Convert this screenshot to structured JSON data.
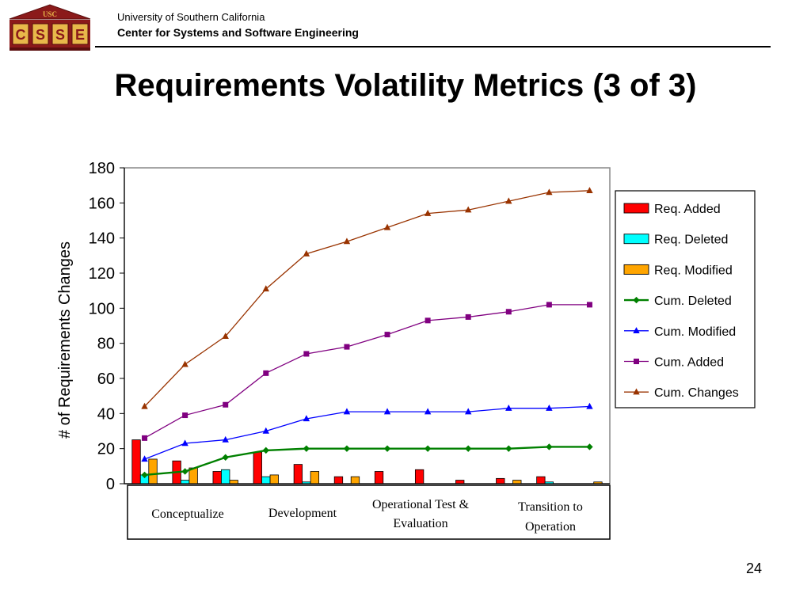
{
  "header": {
    "logo_text": "USC",
    "logo_letters": [
      "C",
      "S",
      "S",
      "E"
    ],
    "university": "University of Southern California",
    "center": "Center for Systems and Software Engineering"
  },
  "slide": {
    "title": "Requirements Volatility Metrics (3 of 3)",
    "number": "24"
  },
  "colors": {
    "req_added": "#ff0000",
    "req_deleted": "#00ffff",
    "req_modified": "#ffa500",
    "cum_deleted": "#008000",
    "cum_modified": "#0000ff",
    "cum_added": "#800080",
    "cum_changes": "#993300",
    "logo_brick": "#8b1a1a",
    "logo_gold": "#e8b84a"
  },
  "chart_data": {
    "type": "bar+line",
    "ylabel": "# of Requirements Changes",
    "ylim": [
      0,
      180
    ],
    "yticks": [
      "0",
      "20",
      "40",
      "60",
      "80",
      "100",
      "120",
      "140",
      "160",
      "180"
    ],
    "periods": 12,
    "grid": false,
    "legend_position": "right",
    "phases": [
      {
        "label_lines": [
          "Conceptualize"
        ]
      },
      {
        "label_lines": [
          "Development"
        ]
      },
      {
        "label_lines": [
          "Operational Test &",
          "Evaluation"
        ]
      },
      {
        "label_lines": [
          "Transition to",
          "Operation"
        ]
      }
    ],
    "bar_series": [
      {
        "name": "Req. Added",
        "color": "#ff0000",
        "values": [
          25,
          13,
          7,
          18,
          11,
          4,
          7,
          8,
          2,
          3,
          4,
          0
        ]
      },
      {
        "name": "Req. Deleted",
        "color": "#00ffff",
        "values": [
          5,
          2,
          8,
          4,
          1,
          0,
          0,
          0,
          0,
          0,
          1,
          0
        ]
      },
      {
        "name": "Req. Modified",
        "color": "#ffa500",
        "values": [
          14,
          9,
          2,
          5,
          7,
          4,
          0,
          0,
          0,
          2,
          0,
          1
        ]
      }
    ],
    "line_series": [
      {
        "name": "Cum. Deleted",
        "color": "#008000",
        "marker": "diamond",
        "values": [
          5,
          7,
          15,
          19,
          20,
          20,
          20,
          20,
          20,
          20,
          21,
          21
        ]
      },
      {
        "name": "Cum. Modified",
        "color": "#0000ff",
        "marker": "triangle",
        "values": [
          14,
          23,
          25,
          30,
          37,
          41,
          41,
          41,
          41,
          43,
          43,
          44
        ]
      },
      {
        "name": "Cum. Added",
        "color": "#800080",
        "marker": "square",
        "values": [
          26,
          39,
          45,
          63,
          74,
          78,
          85,
          93,
          95,
          98,
          102,
          102
        ]
      },
      {
        "name": "Cum. Changes",
        "color": "#993300",
        "marker": "triangle",
        "values": [
          44,
          68,
          84,
          111,
          131,
          138,
          146,
          154,
          156,
          161,
          166,
          167
        ]
      }
    ]
  }
}
